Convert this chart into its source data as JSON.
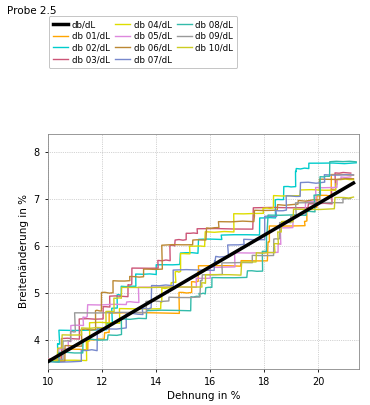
{
  "title": "Probe 2.5",
  "xlabel": "Dehnung in %",
  "ylabel": "Breitenänderung in %",
  "xlim": [
    10,
    21.5
  ],
  "ylim": [
    3.4,
    8.4
  ],
  "xticks": [
    10,
    12,
    14,
    16,
    18,
    20
  ],
  "yticks": [
    4,
    5,
    6,
    7,
    8
  ],
  "series_names": [
    "db/dL",
    "db 01/dL",
    "db 02/dL",
    "db 03/dL",
    "db 04/dL",
    "db 05/dL",
    "db 06/dL",
    "db 07/dL",
    "db 08/dL",
    "db 09/dL",
    "db 10/dL"
  ],
  "series_colors": {
    "db/dL": "#000000",
    "db 01/dL": "#FFA500",
    "db 02/dL": "#00CCCC",
    "db 03/dL": "#CC5577",
    "db 04/dL": "#DDDD00",
    "db 05/dL": "#DD88DD",
    "db 06/dL": "#BB8833",
    "db 07/dL": "#7788CC",
    "db 08/dL": "#33BBAA",
    "db 09/dL": "#999999",
    "db 10/dL": "#CCCC22"
  },
  "series_lw": {
    "db/dL": 2.5,
    "db 01/dL": 1.0,
    "db 02/dL": 1.0,
    "db 03/dL": 1.0,
    "db 04/dL": 1.0,
    "db 05/dL": 1.0,
    "db 06/dL": 1.0,
    "db 07/dL": 1.0,
    "db 08/dL": 1.0,
    "db 09/dL": 1.0,
    "db 10/dL": 1.0
  },
  "background_color": "#ffffff"
}
